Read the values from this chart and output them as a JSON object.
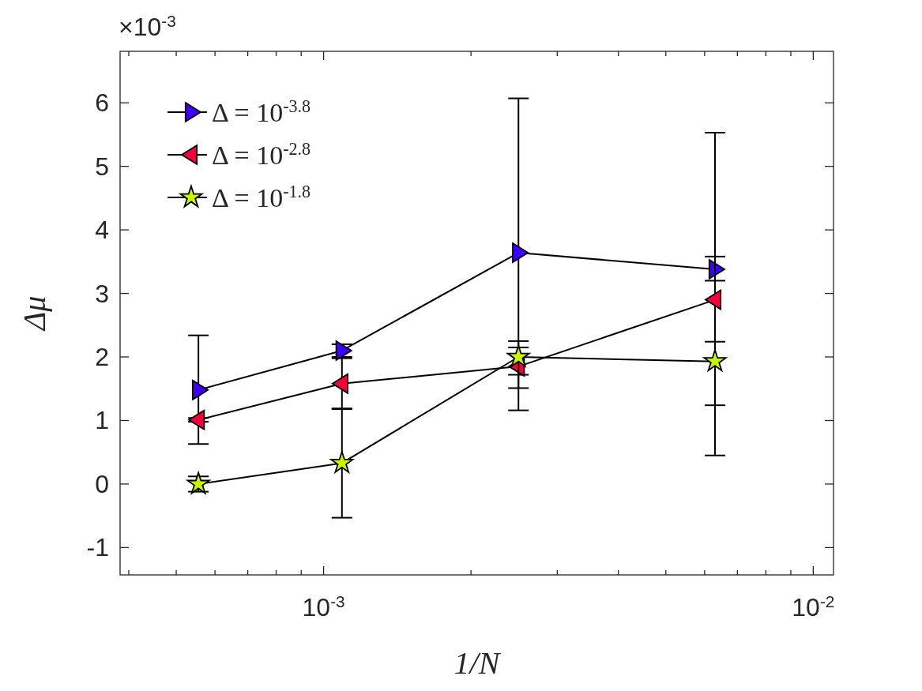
{
  "chart_data": {
    "type": "line",
    "xlabel": "1/N",
    "ylabel": "Δμ",
    "log": "x",
    "x": [
      0.000555,
      0.00109,
      0.0025,
      0.0063
    ],
    "xlim": [
      0.000384,
      0.011
    ],
    "xticks": [
      {
        "value": 0.0004,
        "label": null
      },
      {
        "value": 0.0005,
        "label": null
      },
      {
        "value": 0.0006,
        "label": null
      },
      {
        "value": 0.0007,
        "label": null
      },
      {
        "value": 0.0008,
        "label": null
      },
      {
        "value": 0.0009,
        "label": null
      },
      {
        "value": 0.001,
        "label": "10$^{-3}$"
      },
      {
        "value": 0.002,
        "label": null
      },
      {
        "value": 0.003,
        "label": null
      },
      {
        "value": 0.004,
        "label": null
      },
      {
        "value": 0.005,
        "label": null
      },
      {
        "value": 0.006,
        "label": null
      },
      {
        "value": 0.007,
        "label": null
      },
      {
        "value": 0.008,
        "label": null
      },
      {
        "value": 0.009,
        "label": null
      },
      {
        "value": 0.01,
        "label": "10$^{-2}$"
      }
    ],
    "ylim": [
      -1.43,
      6.81
    ],
    "yticks": [
      -1,
      0,
      1,
      2,
      3,
      4,
      5,
      6
    ],
    "annotations": [
      "×10$^{-3}$"
    ],
    "legend": "top left",
    "grid": false,
    "line_style": "solid",
    "series": [
      {
        "name": "Δ = 10$^{-3.8}$",
        "color": "#3d00f5",
        "marker": "triangle-right",
        "values": [
          1.48,
          2.1,
          3.64,
          3.38
        ],
        "errors": [
          [
            0.63,
            2.34
          ],
          0.1,
          [
            1.16,
            6.07
          ],
          [
            3.2,
            3.58
          ]
        ]
      },
      {
        "name": "Δ = 10$^{-2.8}$",
        "color": "#f5003d",
        "marker": "triangle-left",
        "values": [
          1.01,
          1.58,
          1.85,
          2.9
        ],
        "errors": [
          0.03,
          0.4,
          [
            1.51,
            2.15
          ],
          [
            0.45,
            5.53
          ]
        ]
      },
      {
        "name": "Δ = 10$^{-1.8}$",
        "color": "#c8f500",
        "marker": "star",
        "values": [
          0,
          0.33,
          2.0,
          1.93
        ],
        "errors": [
          0.12,
          [
            -0.53,
            1.19
          ],
          [
            1.72,
            2.25
          ],
          [
            1.24,
            2.24
          ]
        ]
      }
    ]
  }
}
